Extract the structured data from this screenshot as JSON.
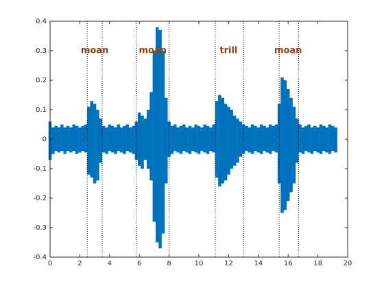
{
  "chart_data": {
    "type": "waveform",
    "color": "#0072bd",
    "x": [
      0,
      0.2,
      0.4,
      0.6,
      0.8,
      1,
      1.2,
      1.4,
      1.6,
      1.8,
      2,
      2.2,
      2.4,
      2.6,
      2.8,
      3,
      3.2,
      3.4,
      3.6,
      3.8,
      4,
      4.2,
      4.4,
      4.6,
      4.8,
      5,
      5.2,
      5.4,
      5.6,
      5.8,
      6,
      6.2,
      6.4,
      6.6,
      6.8,
      7,
      7.2,
      7.4,
      7.6,
      7.8,
      8,
      8.2,
      8.4,
      8.6,
      8.8,
      9,
      9.2,
      9.4,
      9.6,
      9.8,
      10,
      10.2,
      10.4,
      10.6,
      10.8,
      11,
      11.2,
      11.4,
      11.6,
      11.8,
      12,
      12.2,
      12.4,
      12.6,
      12.8,
      13,
      13.2,
      13.4,
      13.6,
      13.8,
      14,
      14.2,
      14.4,
      14.6,
      14.8,
      15,
      15.2,
      15.4,
      15.6,
      15.8,
      16,
      16.2,
      16.4,
      16.6,
      16.8,
      17,
      17.2,
      17.4,
      17.6,
      17.8,
      18,
      18.2,
      18.4,
      18.6,
      18.8,
      19,
      19.2
    ],
    "upper": [
      0.06,
      0.04,
      0.045,
      0.04,
      0.05,
      0.04,
      0.045,
      0.04,
      0.05,
      0.045,
      0.04,
      0.045,
      0.05,
      0.11,
      0.13,
      0.12,
      0.1,
      0.07,
      0.045,
      0.04,
      0.05,
      0.045,
      0.04,
      0.05,
      0.04,
      0.045,
      0.05,
      0.04,
      0.045,
      0.06,
      0.09,
      0.08,
      0.07,
      0.1,
      0.16,
      0.3,
      0.38,
      0.37,
      0.3,
      0.14,
      0.06,
      0.045,
      0.05,
      0.04,
      0.045,
      0.05,
      0.04,
      0.045,
      0.04,
      0.05,
      0.045,
      0.04,
      0.05,
      0.045,
      0.04,
      0.05,
      0.13,
      0.15,
      0.14,
      0.12,
      0.11,
      0.1,
      0.08,
      0.07,
      0.06,
      0.05,
      0.045,
      0.04,
      0.05,
      0.045,
      0.04,
      0.05,
      0.045,
      0.04,
      0.05,
      0.045,
      0.05,
      0.12,
      0.21,
      0.2,
      0.17,
      0.14,
      0.11,
      0.07,
      0.05,
      0.04,
      0.045,
      0.05,
      0.04,
      0.045,
      0.04,
      0.05,
      0.045,
      0.04,
      0.05,
      0.045,
      0.04
    ],
    "lower": [
      -0.07,
      -0.05,
      -0.04,
      -0.045,
      -0.04,
      -0.05,
      -0.04,
      -0.045,
      -0.04,
      -0.05,
      -0.045,
      -0.04,
      -0.045,
      -0.12,
      -0.13,
      -0.15,
      -0.14,
      -0.08,
      -0.045,
      -0.05,
      -0.04,
      -0.045,
      -0.05,
      -0.04,
      -0.045,
      -0.05,
      -0.04,
      -0.045,
      -0.05,
      -0.07,
      -0.09,
      -0.1,
      -0.07,
      -0.1,
      -0.14,
      -0.28,
      -0.35,
      -0.37,
      -0.32,
      -0.15,
      -0.06,
      -0.05,
      -0.04,
      -0.045,
      -0.05,
      -0.04,
      -0.045,
      -0.05,
      -0.04,
      -0.045,
      -0.05,
      -0.04,
      -0.045,
      -0.05,
      -0.04,
      -0.045,
      -0.13,
      -0.16,
      -0.15,
      -0.14,
      -0.12,
      -0.1,
      -0.09,
      -0.08,
      -0.06,
      -0.05,
      -0.04,
      -0.045,
      -0.05,
      -0.04,
      -0.045,
      -0.05,
      -0.04,
      -0.045,
      -0.05,
      -0.04,
      -0.045,
      -0.15,
      -0.25,
      -0.24,
      -0.21,
      -0.18,
      -0.15,
      -0.08,
      -0.045,
      -0.05,
      -0.04,
      -0.045,
      -0.05,
      -0.04,
      -0.045,
      -0.05,
      -0.04,
      -0.045,
      -0.05,
      -0.04,
      -0.045
    ],
    "markers": [
      2.5,
      3.5,
      5.8,
      8.0,
      11.1,
      13.0,
      15.4,
      16.7
    ],
    "annotation_color": "#8b4513",
    "annotations": [
      {
        "text": "moan",
        "x": 3.0,
        "y": 0.3
      },
      {
        "text": "moan",
        "x": 6.9,
        "y": 0.3
      },
      {
        "text": "trill",
        "x": 12.0,
        "y": 0.3
      },
      {
        "text": "moan",
        "x": 16.0,
        "y": 0.3
      }
    ],
    "xlim": [
      0,
      20
    ],
    "xticks": [
      0,
      2,
      4,
      6,
      8,
      10,
      12,
      14,
      16,
      18,
      20
    ],
    "ylim": [
      -0.4,
      0.4
    ],
    "yticks": [
      -0.4,
      -0.3,
      -0.2,
      -0.1,
      0,
      0.1,
      0.2,
      0.3,
      0.4
    ]
  }
}
